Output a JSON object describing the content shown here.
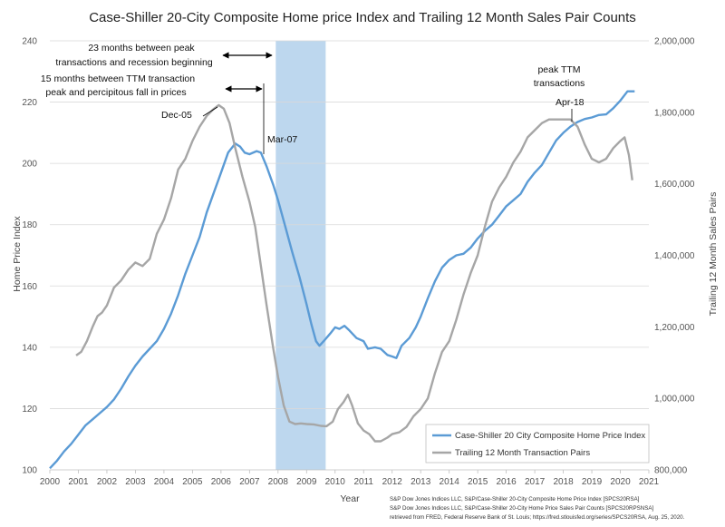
{
  "chart_data": {
    "type": "line",
    "title": "Case-Shiller 20-City Composite Home price Index and Trailing 12 Month Sales Pair Counts",
    "xlabel": "Year",
    "ylabel_left": "Home Price Index",
    "ylabel_right": "Trailing 12 Month Sales Pairs",
    "xlim": [
      2000,
      2021
    ],
    "ylim_left": [
      100,
      240
    ],
    "ylim_right": [
      800000,
      2000000
    ],
    "x_ticks": [
      "2000",
      "2001",
      "2002",
      "2003",
      "2004",
      "2005",
      "2006",
      "2007",
      "2008",
      "2009",
      "2010",
      "2011",
      "2012",
      "2013",
      "2014",
      "2015",
      "2016",
      "2017",
      "2018",
      "2019",
      "2020",
      "2021"
    ],
    "y_ticks_left": [
      "100",
      "120",
      "140",
      "160",
      "180",
      "200",
      "220",
      "240"
    ],
    "y_ticks_right": [
      "800,000",
      "1,000,000",
      "1,200,000",
      "1,400,000",
      "1,600,000",
      "1,800,000",
      "2,000,000"
    ],
    "grid": "horizontal",
    "legend_position": "bottom-right",
    "recession": {
      "start": 2007.92,
      "end": 2009.67,
      "color": "#bdd7ee"
    },
    "series": [
      {
        "name": "Case-Shiller 20 City Composite Home Price Index",
        "axis": "left",
        "color": "#5b9bd5",
        "points": [
          [
            2000.0,
            100.5
          ],
          [
            2000.25,
            103.0
          ],
          [
            2000.5,
            106.0
          ],
          [
            2000.75,
            108.5
          ],
          [
            2001.0,
            111.5
          ],
          [
            2001.25,
            114.5
          ],
          [
            2001.5,
            116.5
          ],
          [
            2001.75,
            118.5
          ],
          [
            2002.0,
            120.5
          ],
          [
            2002.25,
            123.0
          ],
          [
            2002.5,
            126.5
          ],
          [
            2002.75,
            130.5
          ],
          [
            2003.0,
            134.0
          ],
          [
            2003.25,
            137.0
          ],
          [
            2003.5,
            139.5
          ],
          [
            2003.75,
            142.0
          ],
          [
            2004.0,
            146.0
          ],
          [
            2004.25,
            151.0
          ],
          [
            2004.5,
            157.0
          ],
          [
            2004.75,
            164.0
          ],
          [
            2005.0,
            170.0
          ],
          [
            2005.25,
            176.0
          ],
          [
            2005.5,
            184.0
          ],
          [
            2005.75,
            190.5
          ],
          [
            2006.0,
            197.0
          ],
          [
            2006.25,
            203.5
          ],
          [
            2006.5,
            206.5
          ],
          [
            2006.67,
            205.5
          ],
          [
            2006.83,
            203.5
          ],
          [
            2007.0,
            203.0
          ],
          [
            2007.25,
            204.0
          ],
          [
            2007.4,
            203.5
          ],
          [
            2007.6,
            199.0
          ],
          [
            2007.83,
            193.0
          ],
          [
            2008.0,
            188.0
          ],
          [
            2008.25,
            179.5
          ],
          [
            2008.5,
            171.0
          ],
          [
            2008.75,
            163.0
          ],
          [
            2009.0,
            154.0
          ],
          [
            2009.17,
            147.5
          ],
          [
            2009.33,
            142.0
          ],
          [
            2009.45,
            140.5
          ],
          [
            2009.6,
            142.0
          ],
          [
            2009.83,
            144.5
          ],
          [
            2010.0,
            146.5
          ],
          [
            2010.15,
            146.0
          ],
          [
            2010.33,
            147.0
          ],
          [
            2010.5,
            145.5
          ],
          [
            2010.75,
            143.0
          ],
          [
            2011.0,
            142.0
          ],
          [
            2011.15,
            139.5
          ],
          [
            2011.4,
            140.0
          ],
          [
            2011.6,
            139.5
          ],
          [
            2011.83,
            137.5
          ],
          [
            2012.0,
            137.0
          ],
          [
            2012.15,
            136.5
          ],
          [
            2012.33,
            140.5
          ],
          [
            2012.6,
            143.0
          ],
          [
            2012.83,
            146.5
          ],
          [
            2013.0,
            150.0
          ],
          [
            2013.25,
            156.0
          ],
          [
            2013.5,
            161.5
          ],
          [
            2013.75,
            166.0
          ],
          [
            2014.0,
            168.5
          ],
          [
            2014.25,
            170.0
          ],
          [
            2014.5,
            170.5
          ],
          [
            2014.75,
            172.5
          ],
          [
            2015.0,
            175.5
          ],
          [
            2015.25,
            178.0
          ],
          [
            2015.5,
            180.0
          ],
          [
            2015.75,
            183.0
          ],
          [
            2016.0,
            186.0
          ],
          [
            2016.25,
            188.0
          ],
          [
            2016.5,
            190.0
          ],
          [
            2016.75,
            194.0
          ],
          [
            2017.0,
            197.0
          ],
          [
            2017.25,
            199.5
          ],
          [
            2017.5,
            203.5
          ],
          [
            2017.75,
            207.5
          ],
          [
            2018.0,
            210.0
          ],
          [
            2018.25,
            212.0
          ],
          [
            2018.5,
            213.5
          ],
          [
            2018.75,
            214.5
          ],
          [
            2019.0,
            215.0
          ],
          [
            2019.25,
            215.8
          ],
          [
            2019.5,
            216.0
          ],
          [
            2019.75,
            218.0
          ],
          [
            2020.0,
            220.5
          ],
          [
            2020.25,
            223.5
          ],
          [
            2020.5,
            223.5
          ]
        ]
      },
      {
        "name": "Trailing 12 Month Transaction Pairs",
        "axis": "right",
        "color": "#a6a6a6",
        "points": [
          [
            2000.92,
            1120000
          ],
          [
            2001.1,
            1130000
          ],
          [
            2001.3,
            1160000
          ],
          [
            2001.5,
            1200000
          ],
          [
            2001.67,
            1230000
          ],
          [
            2001.83,
            1240000
          ],
          [
            2002.0,
            1260000
          ],
          [
            2002.25,
            1310000
          ],
          [
            2002.5,
            1330000
          ],
          [
            2002.75,
            1360000
          ],
          [
            2003.0,
            1380000
          ],
          [
            2003.25,
            1370000
          ],
          [
            2003.5,
            1390000
          ],
          [
            2003.75,
            1460000
          ],
          [
            2004.0,
            1500000
          ],
          [
            2004.25,
            1560000
          ],
          [
            2004.5,
            1640000
          ],
          [
            2004.75,
            1670000
          ],
          [
            2005.0,
            1720000
          ],
          [
            2005.25,
            1760000
          ],
          [
            2005.5,
            1790000
          ],
          [
            2005.75,
            1810000
          ],
          [
            2005.92,
            1820000
          ],
          [
            2006.1,
            1810000
          ],
          [
            2006.3,
            1770000
          ],
          [
            2006.5,
            1700000
          ],
          [
            2006.75,
            1620000
          ],
          [
            2007.0,
            1550000
          ],
          [
            2007.2,
            1480000
          ],
          [
            2007.4,
            1370000
          ],
          [
            2007.6,
            1260000
          ],
          [
            2007.83,
            1140000
          ],
          [
            2008.0,
            1060000
          ],
          [
            2008.2,
            980000
          ],
          [
            2008.4,
            935000
          ],
          [
            2008.6,
            928000
          ],
          [
            2008.8,
            930000
          ],
          [
            2009.0,
            928000
          ],
          [
            2009.25,
            927000
          ],
          [
            2009.5,
            923000
          ],
          [
            2009.7,
            922000
          ],
          [
            2009.92,
            935000
          ],
          [
            2010.1,
            970000
          ],
          [
            2010.3,
            990000
          ],
          [
            2010.45,
            1010000
          ],
          [
            2010.6,
            980000
          ],
          [
            2010.8,
            930000
          ],
          [
            2011.0,
            910000
          ],
          [
            2011.2,
            900000
          ],
          [
            2011.4,
            880000
          ],
          [
            2011.6,
            880000
          ],
          [
            2011.83,
            890000
          ],
          [
            2012.0,
            900000
          ],
          [
            2012.25,
            905000
          ],
          [
            2012.5,
            920000
          ],
          [
            2012.75,
            950000
          ],
          [
            2013.0,
            970000
          ],
          [
            2013.25,
            1000000
          ],
          [
            2013.5,
            1070000
          ],
          [
            2013.75,
            1130000
          ],
          [
            2014.0,
            1160000
          ],
          [
            2014.25,
            1220000
          ],
          [
            2014.5,
            1290000
          ],
          [
            2014.75,
            1350000
          ],
          [
            2015.0,
            1400000
          ],
          [
            2015.25,
            1480000
          ],
          [
            2015.5,
            1550000
          ],
          [
            2015.75,
            1590000
          ],
          [
            2016.0,
            1620000
          ],
          [
            2016.25,
            1660000
          ],
          [
            2016.5,
            1690000
          ],
          [
            2016.75,
            1730000
          ],
          [
            2017.0,
            1750000
          ],
          [
            2017.25,
            1770000
          ],
          [
            2017.5,
            1780000
          ],
          [
            2017.75,
            1780000
          ],
          [
            2018.0,
            1780000
          ],
          [
            2018.25,
            1780000
          ],
          [
            2018.5,
            1760000
          ],
          [
            2018.75,
            1710000
          ],
          [
            2019.0,
            1670000
          ],
          [
            2019.25,
            1660000
          ],
          [
            2019.5,
            1670000
          ],
          [
            2019.75,
            1700000
          ],
          [
            2020.0,
            1720000
          ],
          [
            2020.15,
            1730000
          ],
          [
            2020.3,
            1680000
          ],
          [
            2020.42,
            1610000
          ]
        ]
      }
    ],
    "annotations": {
      "recession_gap_1": "23 months between peak",
      "recession_gap_2": "transactions and recession beginning",
      "ttm_gap_1": "15 months between TTM transaction",
      "ttm_gap_2": "peak and percipitous fall in prices",
      "dec05": "Dec-05",
      "mar07": "Mar-07",
      "peak_ttm_1": "peak TTM",
      "peak_ttm_2": "transactions",
      "apr18": "Apr-18"
    },
    "source_lines": [
      "S&P Dow Jones Indices LLC, S&P/Case-Shiller 20-City Composite Home Price Index [SPCS20RSA]",
      "S&P Dow Jones Indices LLC, S&P/Case-Shiller 20-City Home Price Sales Pair Counts [SPCS20RPSNSA]",
      "retrieved from FRED, Federal Reserve Bank of St. Louis; https://fred.stlouisfed.org/series/SPCS20RSA, Aug. 25, 2020."
    ]
  }
}
